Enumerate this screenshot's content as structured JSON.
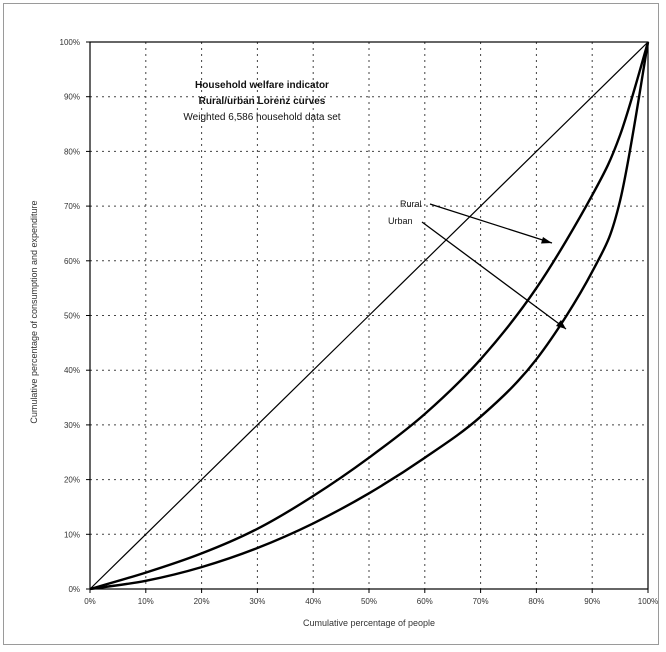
{
  "chart_data": {
    "type": "line",
    "title_lines": [
      "Household welfare indicator",
      "Rural/urban Lorenz curves",
      "Weighted 6,586 household data set"
    ],
    "xlabel": "Cumulative percentage of people",
    "ylabel": "Cumulative percentage of consumption and expenditure",
    "xlim": [
      0,
      100
    ],
    "ylim": [
      0,
      100
    ],
    "x_ticks": [
      "0%",
      "10%",
      "20%",
      "30%",
      "40%",
      "50%",
      "60%",
      "70%",
      "80%",
      "90%",
      "100%"
    ],
    "y_ticks": [
      "0%",
      "10%",
      "20%",
      "30%",
      "40%",
      "50%",
      "60%",
      "70%",
      "80%",
      "90%",
      "100%"
    ],
    "grid": true,
    "series": [
      {
        "x": [
          0,
          100
        ],
        "y": [
          0,
          100
        ]
      },
      {
        "name": "Rural",
        "x": [
          0,
          10,
          20,
          30,
          40,
          50,
          60,
          70,
          80,
          90,
          95,
          100
        ],
        "y": [
          0,
          3,
          6.5,
          11,
          17,
          24,
          32,
          42,
          55,
          72,
          83,
          100
        ]
      },
      {
        "name": "Urban",
        "x": [
          0,
          10,
          20,
          30,
          40,
          50,
          60,
          70,
          80,
          90,
          95,
          100
        ],
        "y": [
          0,
          1.5,
          4,
          7.5,
          12,
          17.5,
          24,
          31.5,
          42,
          58,
          71,
          100
        ]
      }
    ],
    "annotations": [
      {
        "text": "Rural",
        "target_series": "Rural"
      },
      {
        "text": "Urban",
        "target_series": "Urban"
      }
    ]
  }
}
